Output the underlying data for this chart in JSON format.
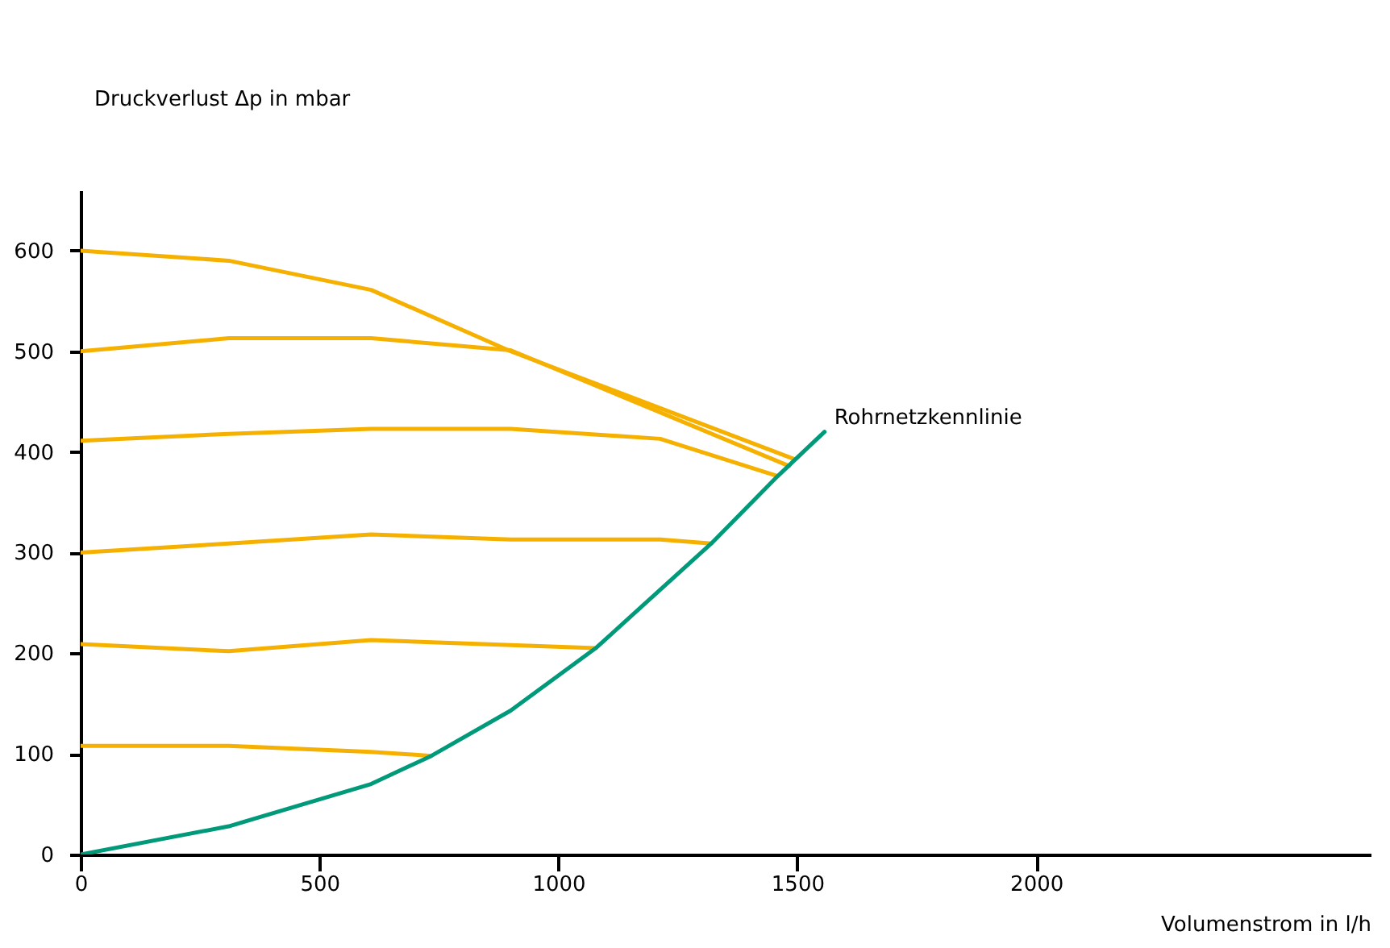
{
  "chart_data": {
    "type": "line",
    "xlabel": "Volumenstrom in l/h",
    "ylabel": "Druckverlust Δp in mbar",
    "xlim": [
      0,
      2700
    ],
    "ylim": [
      0,
      660
    ],
    "xticks": [
      0,
      500,
      1000,
      1500,
      2000
    ],
    "yticks": [
      0,
      100,
      200,
      300,
      400,
      500,
      600
    ],
    "grid": false,
    "marker": "none",
    "line_style": "solid",
    "series": [
      {
        "color": "#f5b000",
        "x": [
          0,
          310,
          608,
          900,
          1493
        ],
        "values": [
          600,
          590,
          561,
          500,
          393
        ]
      },
      {
        "color": "#f5b000",
        "x": [
          0,
          310,
          608,
          900,
          1483
        ],
        "values": [
          500,
          513,
          513,
          501,
          386
        ]
      },
      {
        "color": "#f5b000",
        "x": [
          0,
          310,
          608,
          900,
          1213,
          1459
        ],
        "values": [
          411,
          418,
          423,
          423,
          413,
          376
        ]
      },
      {
        "color": "#f5b000",
        "x": [
          0,
          310,
          608,
          900,
          1213,
          1320
        ],
        "values": [
          300,
          309,
          318,
          313,
          313,
          309
        ]
      },
      {
        "color": "#f5b000",
        "x": [
          0,
          310,
          608,
          1078
        ],
        "values": [
          209,
          202,
          213,
          205
        ]
      },
      {
        "color": "#f5b000",
        "x": [
          0,
          310,
          608,
          734
        ],
        "values": [
          108,
          108,
          102,
          98
        ]
      },
      {
        "name": "Rohrnetzkennlinie",
        "color": "#009a7a",
        "x": [
          0,
          310,
          608,
          734,
          900,
          1078,
          1320,
          1459,
          1557
        ],
        "values": [
          0,
          28,
          70,
          98,
          143,
          205,
          309,
          376,
          420
        ]
      }
    ]
  }
}
